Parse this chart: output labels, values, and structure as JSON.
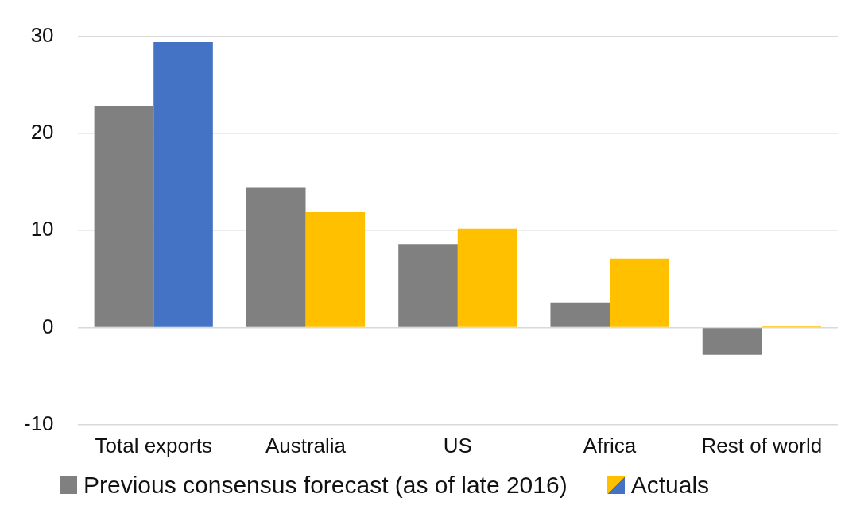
{
  "chart_data": {
    "type": "bar",
    "categories": [
      "Total exports",
      "Australia",
      "US",
      "Africa",
      "Rest of world"
    ],
    "series": [
      {
        "name": "Previous consensus forecast (as of late 2016)",
        "color": "#808080",
        "values": [
          22.8,
          14.4,
          8.6,
          2.6,
          -2.8
        ]
      },
      {
        "name": "Actuals",
        "colors": [
          "#4472c4",
          "#ffc000",
          "#ffc000",
          "#ffc000",
          "#ffc000"
        ],
        "values": [
          29.4,
          11.9,
          10.2,
          7.1,
          0.2
        ]
      }
    ],
    "ylim": [
      -10,
      30
    ],
    "yticks": [
      -10,
      0,
      10,
      20,
      30
    ],
    "grid": "y",
    "legend": "bottom"
  }
}
